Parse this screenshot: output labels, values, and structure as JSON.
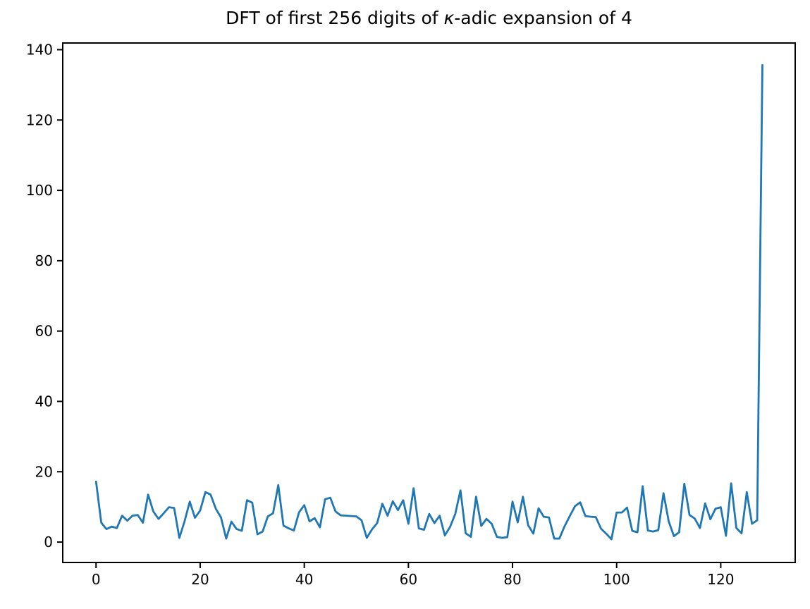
{
  "title": {
    "prefix": "DFT of first 256 digits of ",
    "kappa": "κ",
    "suffix": "-adic expansion of 4"
  },
  "colors": {
    "line": "#1f77b4",
    "spine": "#000000",
    "text": "#000000",
    "background": "#ffffff"
  },
  "chart_data": {
    "type": "line",
    "title": "DFT of first 256 digits of κ-adic expansion of 4",
    "xlabel": "",
    "ylabel": "",
    "legend": false,
    "grid": false,
    "x_start": 0,
    "x_step": 1,
    "n_points": 129,
    "values": [
      17.2,
      5.5,
      3.7,
      4.4,
      4.0,
      7.5,
      6.1,
      7.5,
      7.7,
      5.5,
      13.5,
      8.7,
      6.6,
      8.2,
      9.9,
      9.7,
      1.2,
      5.9,
      11.5,
      6.9,
      9.0,
      14.2,
      13.5,
      9.5,
      7.0,
      1.0,
      5.8,
      3.7,
      3.2,
      11.9,
      11.2,
      2.2,
      3.0,
      7.3,
      8.2,
      16.2,
      4.7,
      3.9,
      3.3,
      8.5,
      10.5,
      5.9,
      6.8,
      4.2,
      12.2,
      12.6,
      8.7,
      7.6,
      7.5,
      7.4,
      7.3,
      6.2,
      1.2,
      3.6,
      5.4,
      10.9,
      7.5,
      11.6,
      9.1,
      11.9,
      5.2,
      15.3,
      3.9,
      3.5,
      8.0,
      5.4,
      7.5,
      1.9,
      4.3,
      8.0,
      14.7,
      2.5,
      1.5,
      12.9,
      4.6,
      6.6,
      5.2,
      1.5,
      1.2,
      1.4,
      11.5,
      5.6,
      12.9,
      4.8,
      2.4,
      9.6,
      7.2,
      7.0,
      1.0,
      1.0,
      4.5,
      7.4,
      10.2,
      11.3,
      7.4,
      7.2,
      7.1,
      3.8,
      2.4,
      0.8,
      8.4,
      8.4,
      9.8,
      3.2,
      2.8,
      15.9,
      3.3,
      3.0,
      3.4,
      13.9,
      5.9,
      1.7,
      2.8,
      16.6,
      7.7,
      6.7,
      4.0,
      11.0,
      6.5,
      9.5,
      9.9,
      1.8,
      16.7,
      4.0,
      2.5,
      14.2,
      5.2,
      6.2,
      135.6
    ],
    "x_ticks": [
      0,
      20,
      40,
      60,
      80,
      100,
      120
    ],
    "y_ticks": [
      0,
      20,
      40,
      60,
      80,
      100,
      120,
      140
    ],
    "xlim": [
      -6.4,
      134.3
    ],
    "ylim": [
      -5.8,
      141.9
    ]
  }
}
